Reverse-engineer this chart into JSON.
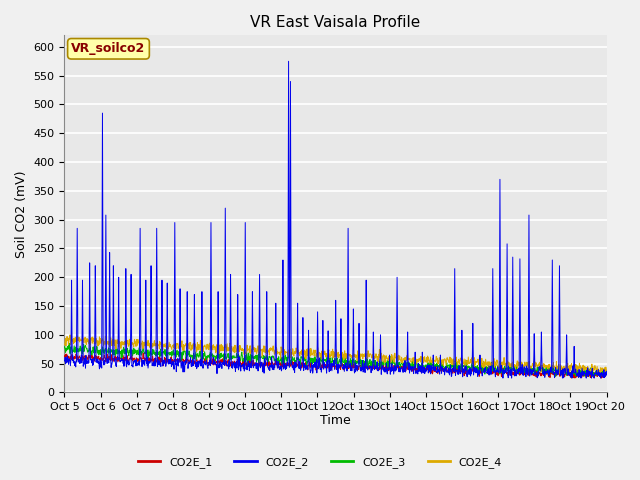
{
  "title": "VR East Vaisala Profile",
  "ylabel": "Soil CO2 (mV)",
  "xlabel": "Time",
  "annotation": "VR_soilco2",
  "ylim": [
    0,
    620
  ],
  "yticks": [
    0,
    50,
    100,
    150,
    200,
    250,
    300,
    350,
    400,
    450,
    500,
    550,
    600
  ],
  "x_tick_labels": [
    "Oct 5",
    "Oct 6",
    "Oct 7",
    "Oct 8",
    "Oct 9",
    "Oct 10",
    "Oct 11",
    "Oct 12",
    "Oct 13",
    "Oct 14",
    "Oct 15",
    "Oct 16",
    "Oct 17",
    "Oct 18",
    "Oct 19",
    "Oct 20"
  ],
  "line_colors": {
    "CO2E_1": "#cc0000",
    "CO2E_2": "#0000ee",
    "CO2E_3": "#00bb00",
    "CO2E_4": "#ddaa00"
  },
  "fig_bg_color": "#f0f0f0",
  "plot_bg_color": "#e8e8e8",
  "grid_color": "#ffffff",
  "annotation_box_color": "#ffffaa",
  "annotation_text_color": "#880000",
  "annotation_border_color": "#aa8800",
  "legend_colors": [
    "#cc0000",
    "#0000ee",
    "#00bb00",
    "#ddaa00"
  ],
  "legend_labels": [
    "CO2E_1",
    "CO2E_2",
    "CO2E_3",
    "CO2E_4"
  ],
  "title_fontsize": 11,
  "axis_fontsize": 9,
  "tick_fontsize": 8,
  "legend_fontsize": 8
}
